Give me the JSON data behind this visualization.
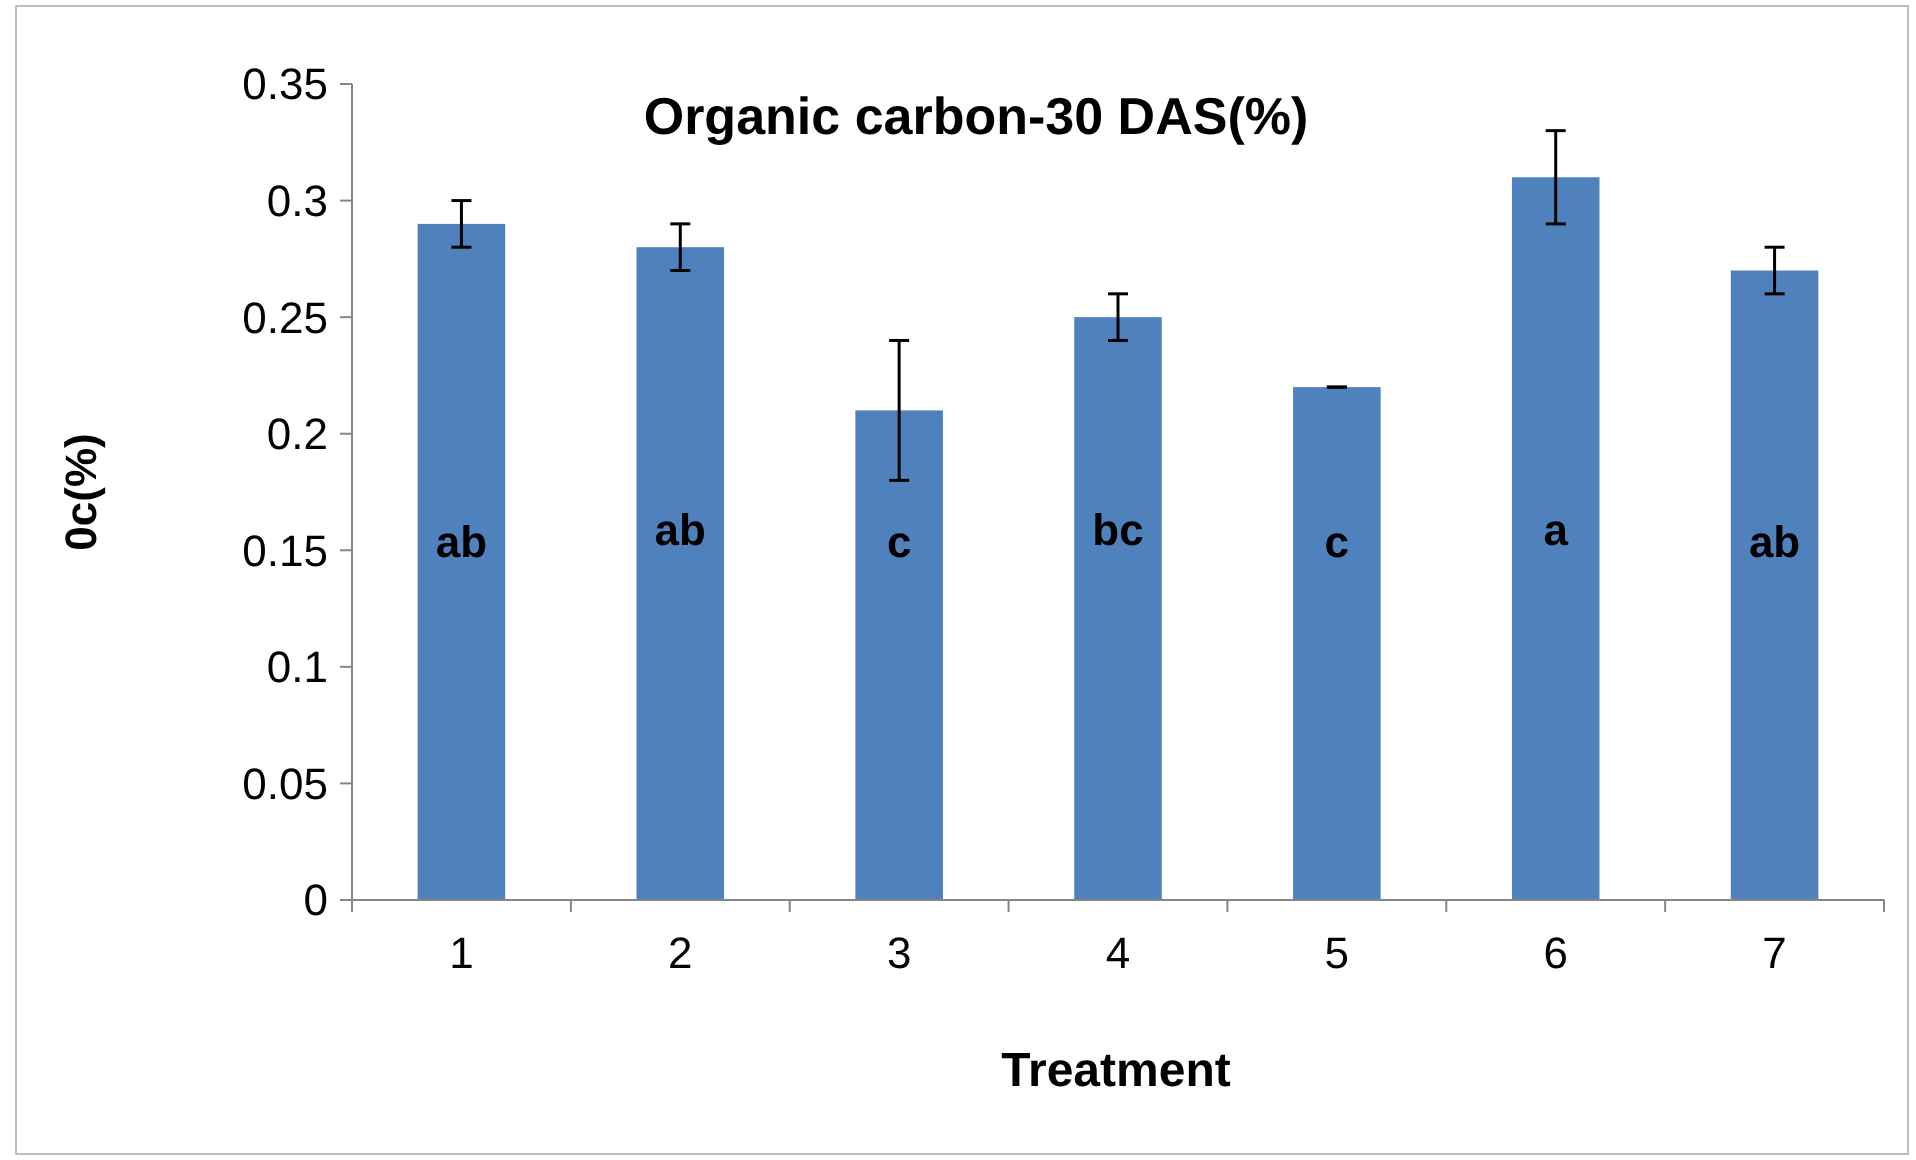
{
  "chart_data": {
    "type": "bar",
    "title": "Organic carbon-30 DAS(%)",
    "xlabel": "Treatment",
    "ylabel": "0c(%)",
    "categories": [
      "1",
      "2",
      "3",
      "4",
      "5",
      "6",
      "7"
    ],
    "values": [
      0.29,
      0.28,
      0.21,
      0.25,
      0.22,
      0.31,
      0.27
    ],
    "errors": [
      0.01,
      0.01,
      0.03,
      0.01,
      0,
      0.02,
      0.01
    ],
    "color": "#4f81bd",
    "ylim": [
      0,
      0.35
    ],
    "yticks": [
      0,
      0.05,
      0.1,
      0.15,
      0.2,
      0.25,
      0.3,
      0.35
    ],
    "grid": false,
    "annotations": [
      "ab",
      "ab",
      "c",
      "bc",
      "c",
      "a",
      "ab"
    ]
  }
}
